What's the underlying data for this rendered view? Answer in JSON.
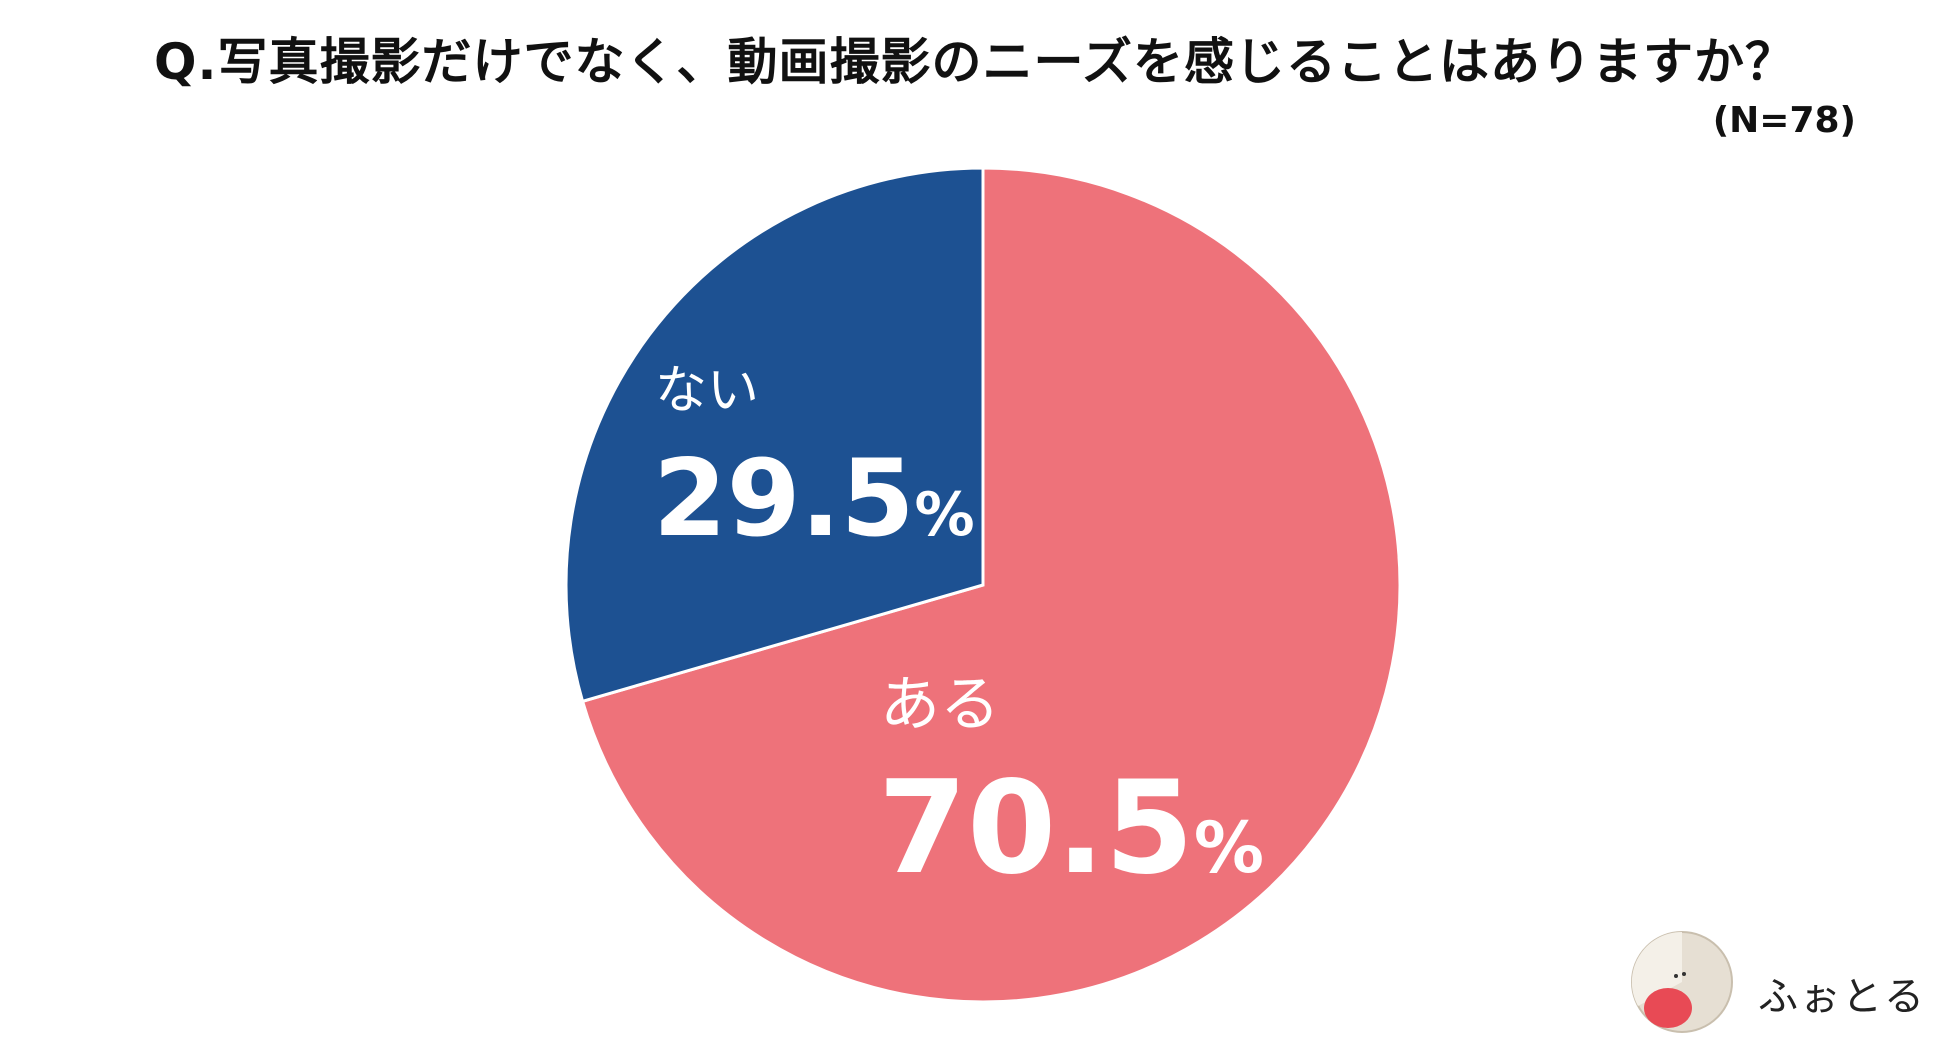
{
  "chart_data": {
    "type": "pie",
    "title": "Q.写真撮影だけでなく、動画撮影のニーズを感じることはありますか？",
    "subtitle": "(N=78)",
    "slices": [
      {
        "label": "ある",
        "value": 70.5,
        "value_label": "70.5",
        "unit": "%",
        "color": "#ee727a"
      },
      {
        "label": "ない",
        "value": 29.5,
        "value_label": "29.5",
        "unit": "%",
        "color": "#1d5192"
      }
    ],
    "start": "12 o'clock",
    "direction": "clockwise",
    "legend": "none"
  },
  "logo": {
    "text": "ふぉとる"
  }
}
